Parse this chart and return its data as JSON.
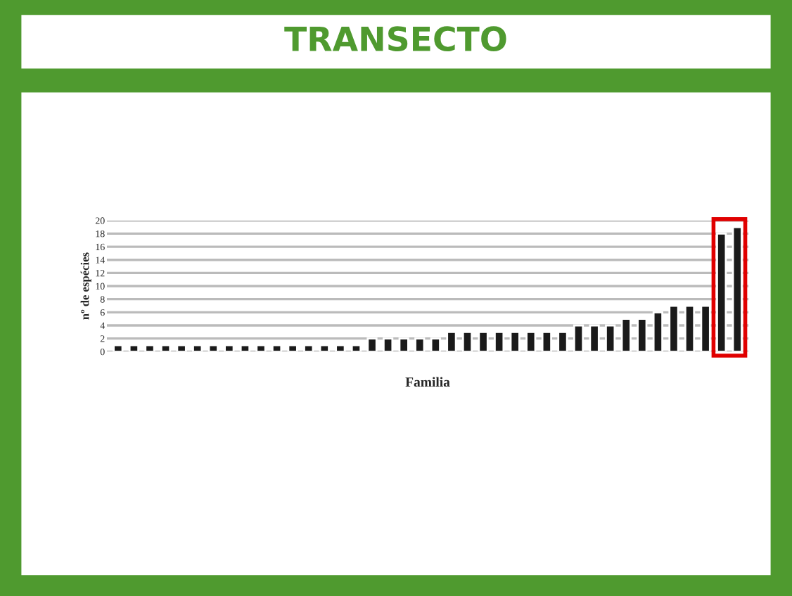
{
  "chart_data": {
    "type": "bar",
    "title": "TRANSECTO",
    "xlabel": "Familia",
    "ylabel": "nº de espécies",
    "categories": [
      null,
      null,
      null,
      null,
      null,
      null,
      null,
      null,
      null,
      null,
      null,
      null,
      null,
      null,
      null,
      null,
      null,
      null,
      null,
      null,
      null,
      null,
      null,
      null,
      null,
      null,
      null,
      null,
      null,
      null,
      null,
      null,
      null,
      null,
      null,
      null,
      null,
      null,
      null,
      null
    ],
    "values": [
      1,
      1,
      1,
      1,
      1,
      1,
      1,
      1,
      1,
      1,
      1,
      1,
      1,
      1,
      1,
      1,
      2,
      2,
      2,
      2,
      2,
      3,
      3,
      3,
      3,
      3,
      3,
      3,
      3,
      4,
      4,
      4,
      5,
      5,
      6,
      7,
      7,
      7,
      18,
      19
    ],
    "color": "#1a1a1a",
    "ylim": [
      0,
      20
    ],
    "yticks": [
      0,
      2,
      4,
      6,
      8,
      10,
      12,
      14,
      16,
      18,
      20
    ],
    "grid": "y",
    "legend": false
  }
}
